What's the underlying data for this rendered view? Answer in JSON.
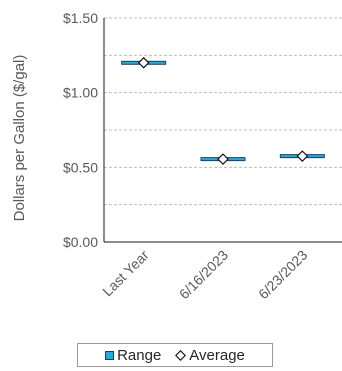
{
  "chart_data": {
    "type": "range",
    "categories": [
      "Last Year",
      "6/16/2023",
      "6/23/2023"
    ],
    "series": [
      {
        "name": "Range",
        "low": [
          1.19,
          0.545,
          0.565
        ],
        "high": [
          1.21,
          0.565,
          0.585
        ]
      },
      {
        "name": "Average",
        "values": [
          1.2,
          0.555,
          0.575
        ]
      }
    ],
    "ylabel": "Dollars per Gallon ($/gal)",
    "ylim": [
      0,
      1.5
    ],
    "yticks": [
      0,
      0.5,
      1.0,
      1.5
    ],
    "ytick_labels": [
      "$0.00",
      "$0.50",
      "$1.00",
      "$1.50"
    ],
    "grid": true,
    "legend": "bottom",
    "colors": {
      "range_fill": "#2aa9d6",
      "range_edge": "#1b3f66",
      "grid": "#bfbfbf"
    }
  }
}
